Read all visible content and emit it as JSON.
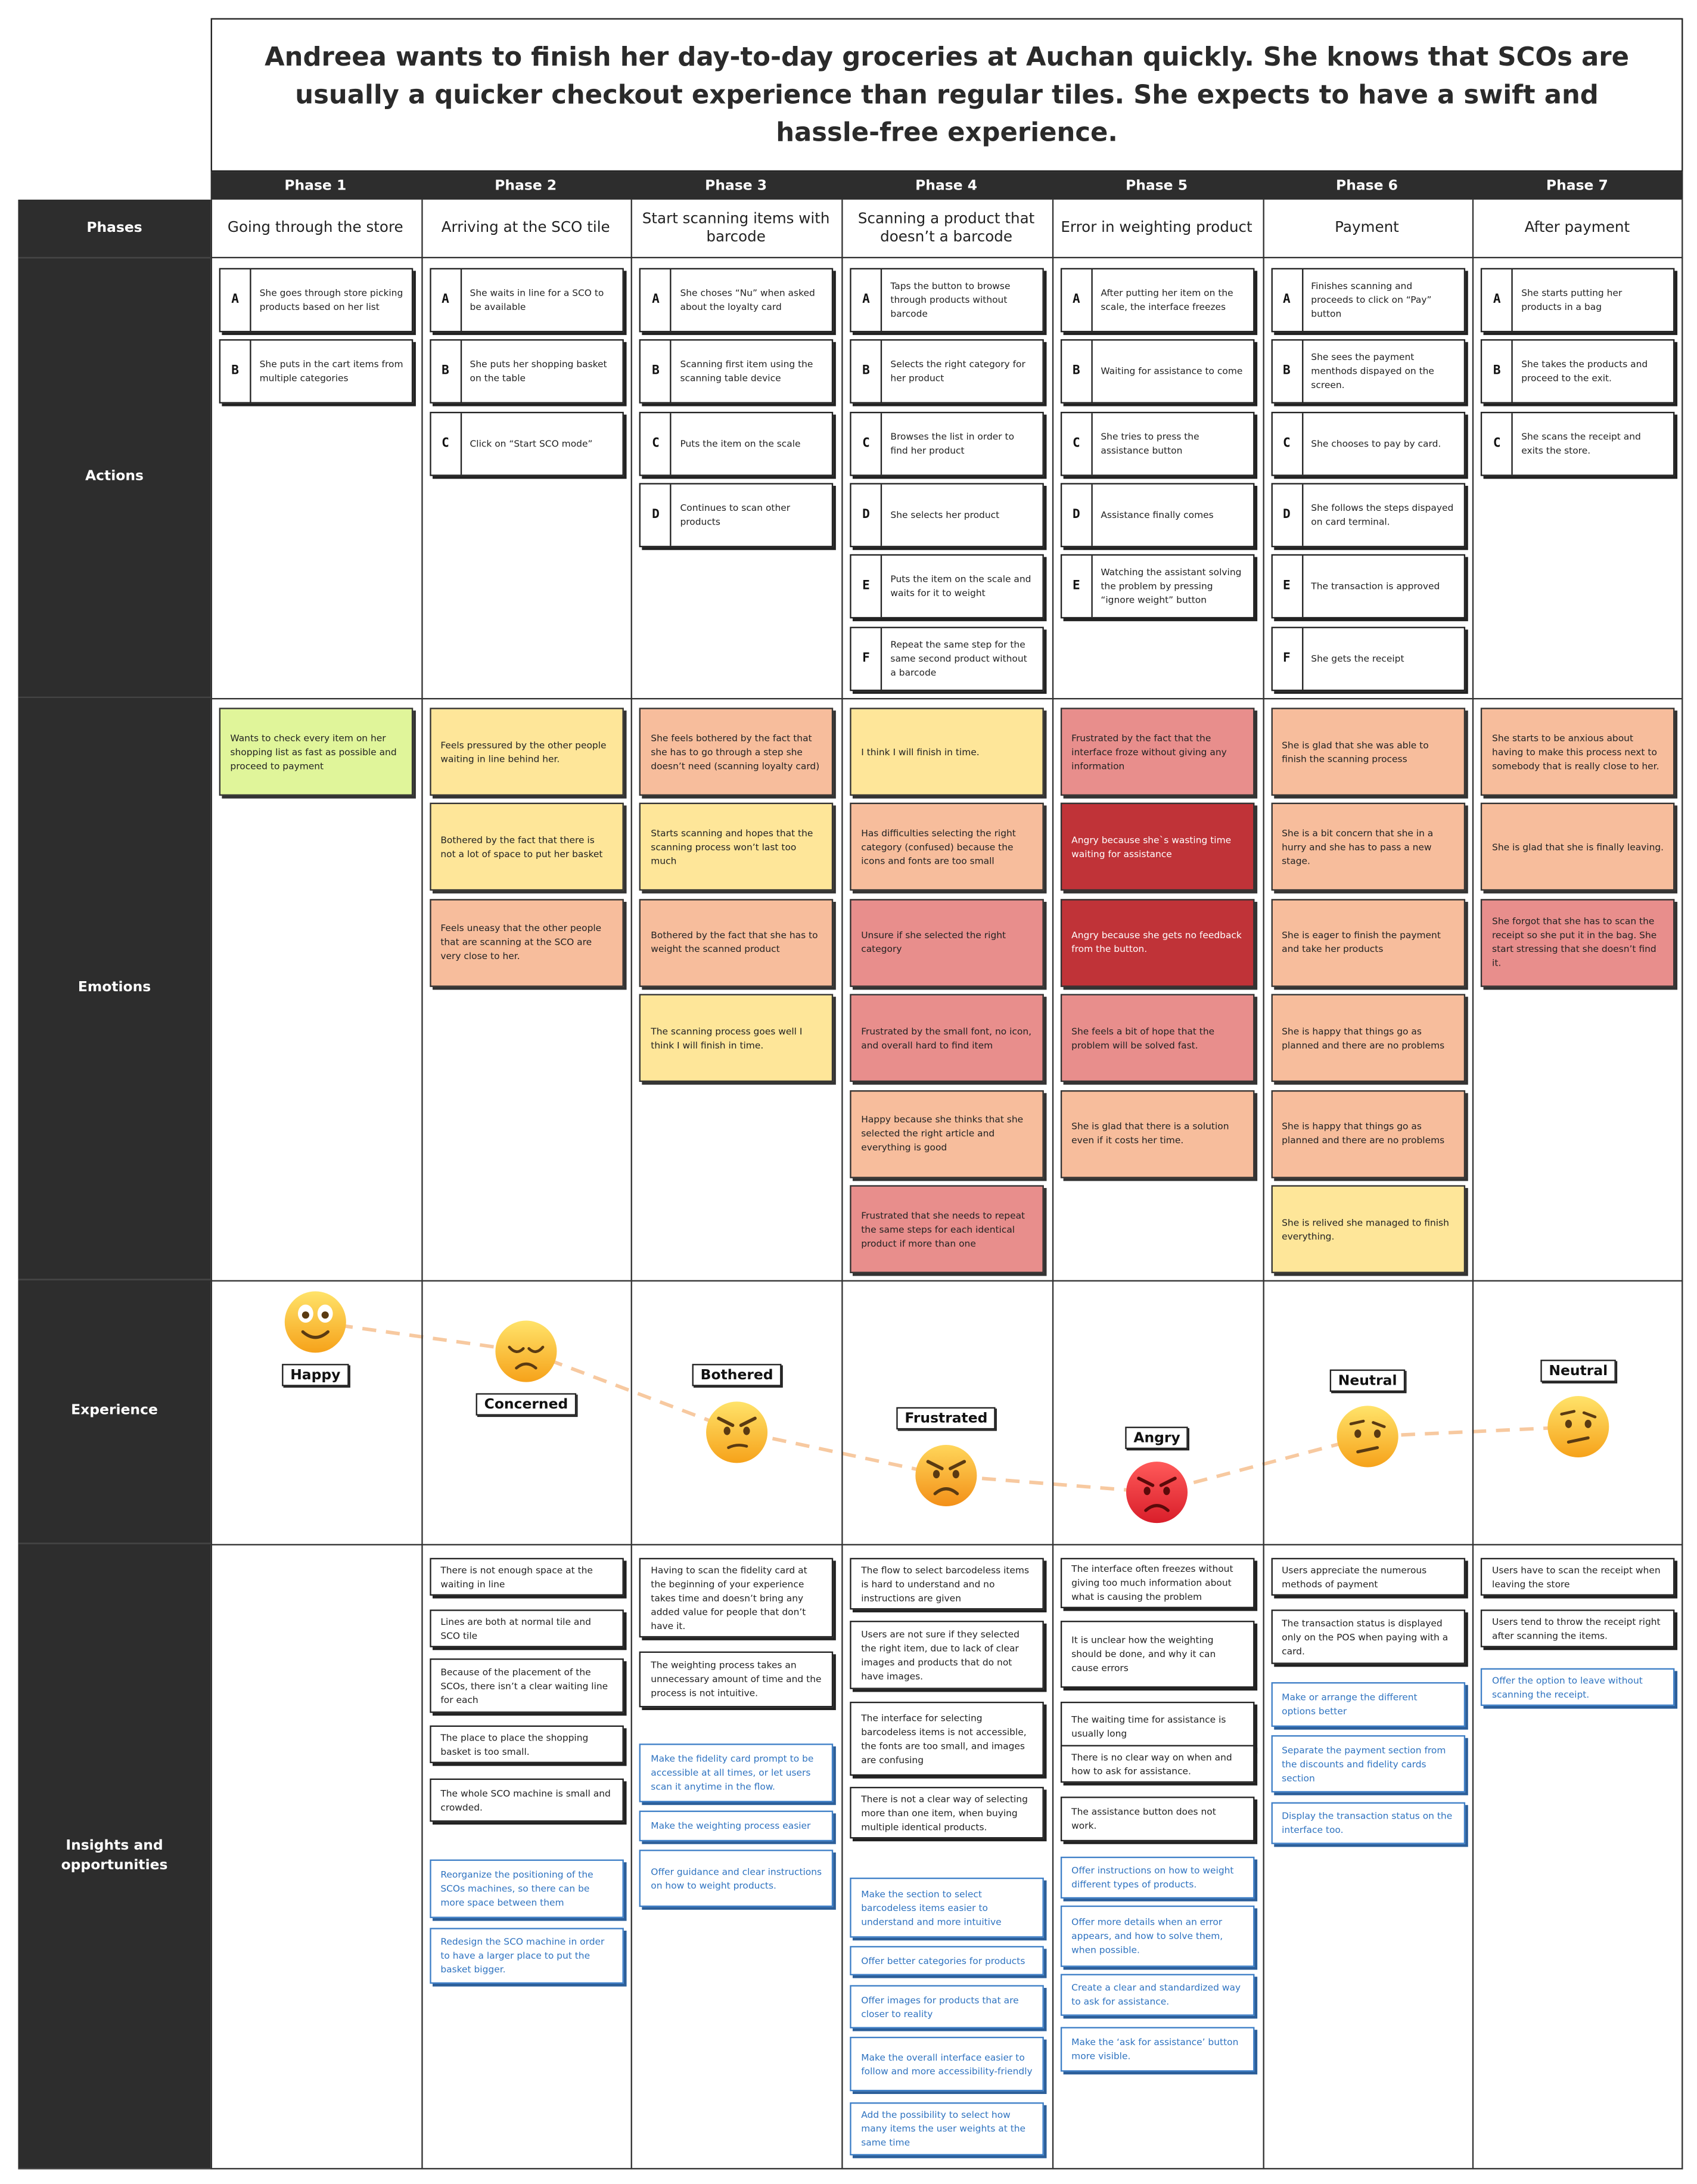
{
  "scenario": "Andreea wants to finish her day-to-day groceries at Auchan quickly. She knows that SCOs are usually a quicker checkout experience than regular tiles. She expects to have a swift and hassle-free experience.",
  "rows": {
    "phases": "Phases",
    "actions": "Actions",
    "emotions": "Emotions",
    "experience": "Experience",
    "insights": "Insights and opportunities"
  },
  "phases": [
    {
      "label": "Phase 1",
      "name": "Going through the store",
      "actions": [
        {
          "letter": "A",
          "text": "She goes through store picking products based on her list"
        },
        {
          "letter": "B",
          "text": "She puts in the cart items from multiple categories"
        }
      ],
      "emotions": [
        {
          "text": "Wants to check every item on her shopping list as fast as possible and proceed to payment",
          "color": "green"
        }
      ],
      "experience": {
        "label": "Happy",
        "level": 5,
        "face": "happy"
      },
      "insights": [],
      "opportunities": []
    },
    {
      "label": "Phase 2",
      "name": "Arriving at the SCO tile",
      "actions": [
        {
          "letter": "A",
          "text": "She waits in line for a SCO to be available"
        },
        {
          "letter": "B",
          "text": "She puts her shopping basket on the table"
        },
        {
          "letter": "C",
          "text": "Click on “Start SCO mode”"
        }
      ],
      "emotions": [
        {
          "text": "Feels pressured by the other people waiting in line behind her.",
          "color": "yellow"
        },
        {
          "text": "Bothered by the fact that there is not a lot of space to put her basket",
          "color": "yellow"
        },
        {
          "text": "Feels uneasy that the other people that are scanning at the SCO are very close to her.",
          "color": "orange"
        }
      ],
      "experience": {
        "label": "Concerned",
        "level": 4,
        "face": "concerned"
      },
      "insights": [
        "There is not enough space at the waiting in line",
        "Lines are both at normal tile and SCO tile",
        "Because of the placement of the SCOs, there isn’t a clear waiting line for each",
        "The place to place the shopping basket is too small.",
        "The whole SCO machine is small and crowded."
      ],
      "opportunities": [
        "Reorganize the positioning of the SCOs machines, so there can be more space between them",
        "Redesign the SCO machine in order to have a larger place to put the basket bigger."
      ]
    },
    {
      "label": "Phase 3",
      "name": "Start scanning items with barcode",
      "actions": [
        {
          "letter": "A",
          "text": "She choses “Nu” when asked about the loyalty card"
        },
        {
          "letter": "B",
          "text": "Scanning first item using the scanning table device"
        },
        {
          "letter": "C",
          "text": "Puts the item on the scale"
        },
        {
          "letter": "D",
          "text": "Continues to scan other products"
        }
      ],
      "emotions": [
        {
          "text": "She feels bothered by the fact that she has to go through a step she doesn’t need (scanning loyalty card)",
          "color": "orange"
        },
        {
          "text": "Starts scanning and hopes that the scanning process won’t last too much",
          "color": "yellow"
        },
        {
          "text": "Bothered by the fact that she has to weight the scanned product",
          "color": "orange"
        },
        {
          "text": "The scanning process goes well I think I will finish in time.",
          "color": "yellow"
        }
      ],
      "experience": {
        "label": "Bothered",
        "level": 3,
        "face": "bothered"
      },
      "insights": [
        "Having to scan the fidelity card at the beginning of your experience takes time and doesn’t bring any added value for people that don’t have it.",
        "The weighting process takes an unnecessary amount of time and the process is not intuitive."
      ],
      "opportunities": [
        "Make the fidelity card prompt to be accessible at all times, or let users scan it anytime in the flow.",
        "Make the weighting process easier",
        "Offer guidance and clear instructions on how to weight products."
      ]
    },
    {
      "label": "Phase 4",
      "name": "Scanning a product that doesn’t a barcode",
      "actions": [
        {
          "letter": "A",
          "text": "Taps the button to browse through products without barcode"
        },
        {
          "letter": "B",
          "text": "Selects the right category for her product"
        },
        {
          "letter": "C",
          "text": "Browses the list in order to find her product"
        },
        {
          "letter": "D",
          "text": "She selects her product"
        },
        {
          "letter": "E",
          "text": "Puts the item on the scale and waits for it to weight"
        },
        {
          "letter": "F",
          "text": "Repeat the same step for the same second product without a barcode"
        }
      ],
      "emotions": [
        {
          "text": "I think I will finish in time.",
          "color": "yellow"
        },
        {
          "text": "Has difficulties selecting the right category (confused) because the icons and fonts are too small",
          "color": "orange"
        },
        {
          "text": "Unsure if she selected the right category",
          "color": "red"
        },
        {
          "text": "Frustrated by the small font, no icon, and overall hard to find item",
          "color": "red"
        },
        {
          "text": "Happy because she thinks that she selected the right article and everything is good",
          "color": "orange"
        },
        {
          "text": "Frustrated that she needs to repeat the same steps for each identical product if more than one",
          "color": "red"
        }
      ],
      "experience": {
        "label": "Frustrated",
        "level": 2,
        "face": "frustrated"
      },
      "insights": [
        "The flow to select barcodeless items is hard to understand and no instructions are given",
        "Users are not sure if they selected the right item, due to lack of clear images and products that do not have images.",
        "The interface for selecting barcodeless items is not accessible, the fonts are too small, and images are confusing",
        "There is not a clear way of selecting more than one item, when buying multiple identical products."
      ],
      "opportunities": [
        "Make the section to select barcodeless items easier to understand and more intuitive",
        "Offer better categories for products",
        "Offer images for products that are closer to reality",
        "Make the overall interface easier to follow and more accessibility-friendly",
        "Add the possibility to select how many items the user weights at the same time"
      ]
    },
    {
      "label": "Phase 5",
      "name": "Error in weighting product",
      "actions": [
        {
          "letter": "A",
          "text": "After putting her item on the scale, the interface freezes"
        },
        {
          "letter": "B",
          "text": "Waiting for assistance to come"
        },
        {
          "letter": "C",
          "text": "She tries to press the assistance button"
        },
        {
          "letter": "D",
          "text": "Assistance finally comes"
        },
        {
          "letter": "E",
          "text": "Watching the assistant solving the problem by pressing “ignore weight” button"
        }
      ],
      "emotions": [
        {
          "text": "Frustrated by the fact that the interface froze without giving any information",
          "color": "red"
        },
        {
          "text": "Angry because she`s wasting time waiting for assistance",
          "color": "dark"
        },
        {
          "text": "Angry because she gets no feedback from the button.",
          "color": "dark"
        },
        {
          "text": "She feels a bit of hope that the problem will be solved fast.",
          "color": "red"
        },
        {
          "text": "She is glad that there is a solution even if it costs her time.",
          "color": "orange"
        }
      ],
      "experience": {
        "label": "Angry",
        "level": 1,
        "face": "angry"
      },
      "insights": [
        "The interface often freezes without giving too much information about what is causing the problem",
        "It is unclear how the weighting should be done, and why it can cause errors",
        "The waiting time for assistance is usually long",
        "There is no clear way on when and how to ask for assistance.",
        "The assistance button does not work."
      ],
      "opportunities": [
        "Offer instructions on how to weight different types of products.",
        "Offer more details when an error appears, and how to solve them, when possible.",
        "Create a clear and standardized way to ask for assistance.",
        "Make the ‘ask for assistance’ button more visible."
      ]
    },
    {
      "label": "Phase 6",
      "name": "Payment",
      "actions": [
        {
          "letter": "A",
          "text": "Finishes scanning and proceeds to click on “Pay” button"
        },
        {
          "letter": "B",
          "text": "She sees the payment menthods dispayed on the screen."
        },
        {
          "letter": "C",
          "text": "She chooses to pay by card."
        },
        {
          "letter": "D",
          "text": "She follows the steps dispayed on card terminal."
        },
        {
          "letter": "E",
          "text": "The transaction is approved"
        },
        {
          "letter": "F",
          "text": "She gets the receipt"
        }
      ],
      "emotions": [
        {
          "text": "She is glad that she was able to finish the scanning process",
          "color": "orange"
        },
        {
          "text": "She is a bit concern that she in a hurry and she has to pass a new stage.",
          "color": "orange"
        },
        {
          "text": "She is eager to finish the payment and take her products",
          "color": "orange"
        },
        {
          "text": "She is happy that things go as planned and there are no problems",
          "color": "orange"
        },
        {
          "text": "She is happy that things go as planned and there are no problems",
          "color": "orange"
        },
        {
          "text": "She is relived she managed to finish everything.",
          "color": "yellow"
        }
      ],
      "experience": {
        "label": "Neutral",
        "level": 3.5,
        "face": "neutral"
      },
      "insights": [
        "Users appreciate the numerous methods of payment",
        "The transaction status is displayed only on the POS when paying with a card."
      ],
      "opportunities": [
        "Make or arrange the different options better",
        "Separate the payment section from the discounts and fidelity cards section",
        "Display the transaction status on the interface too."
      ]
    },
    {
      "label": "Phase 7",
      "name": "After payment",
      "actions": [
        {
          "letter": "A",
          "text": "She starts putting her products in a bag"
        },
        {
          "letter": "B",
          "text": "She takes the products and proceed to the exit."
        },
        {
          "letter": "C",
          "text": "She scans the receipt and exits the store."
        }
      ],
      "emotions": [
        {
          "text": "She starts to be anxious about having to make this process next to somebody that is really close to her.",
          "color": "orange"
        },
        {
          "text": "She is glad that she is finally leaving.",
          "color": "orange"
        },
        {
          "text": "She forgot that she has to scan the receipt so she put it in the bag. She start stressing that she doesn’t find it.",
          "color": "red"
        }
      ],
      "experience": {
        "label": "Neutral",
        "level": 3.6,
        "face": "neutral"
      },
      "insights": [
        "Users have to scan the receipt when leaving the store",
        "Users tend to throw the receipt right after scanning the items."
      ],
      "opportunities": [
        "Offer the option to leave without scanning the receipt."
      ]
    }
  ],
  "colors": {
    "green": "#e0f59a",
    "yellow": "#fee699",
    "orange": "#f7bd9c",
    "red": "#e88e8c",
    "dark": "#c03338",
    "opportunity": "#2f73c0",
    "curve": "#f7c9a0"
  }
}
